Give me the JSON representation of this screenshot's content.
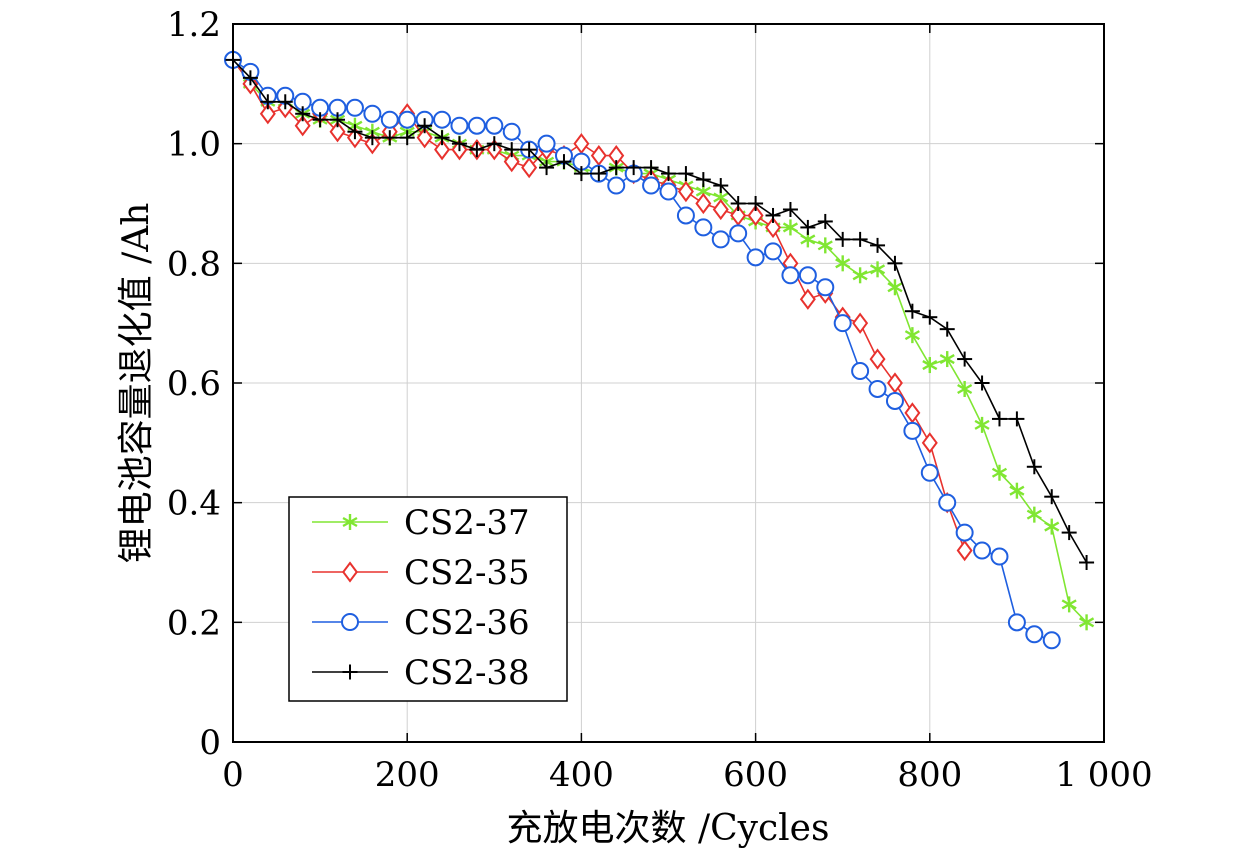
{
  "chart_data": {
    "type": "line",
    "title": "",
    "xlabel": "充放电次数 /Cycles",
    "ylabel": "锂电池容量退化值 /Ah",
    "xlim": [
      0,
      1000
    ],
    "ylim": [
      0,
      1.2
    ],
    "x_ticks": [
      0,
      200,
      400,
      600,
      800,
      1000
    ],
    "x_tick_labels": [
      "0",
      "200",
      "400",
      "600",
      "800",
      "1 000"
    ],
    "y_ticks": [
      0,
      0.2,
      0.4,
      0.6,
      0.8,
      1.0,
      1.2
    ],
    "y_tick_labels": [
      "0",
      "0.2",
      "0.4",
      "0.6",
      "0.8",
      "1.0",
      "1.2"
    ],
    "grid": true,
    "legend_position": "bottom-left",
    "series": [
      {
        "name": "CS2-37",
        "color": "#80e632",
        "marker": "asterisk",
        "x": [
          0,
          20,
          40,
          60,
          80,
          100,
          120,
          140,
          160,
          180,
          200,
          220,
          240,
          260,
          280,
          300,
          320,
          340,
          360,
          380,
          400,
          420,
          440,
          460,
          480,
          500,
          520,
          540,
          560,
          580,
          600,
          620,
          640,
          660,
          680,
          700,
          720,
          740,
          760,
          780,
          800,
          820,
          840,
          860,
          880,
          900,
          920,
          940,
          960,
          980
        ],
        "y": [
          1.14,
          1.1,
          1.07,
          1.07,
          1.05,
          1.04,
          1.04,
          1.03,
          1.02,
          1.01,
          1.02,
          1.02,
          1.01,
          1.0,
          0.99,
          0.99,
          0.98,
          0.98,
          0.97,
          0.97,
          0.96,
          0.95,
          0.96,
          0.95,
          0.95,
          0.94,
          0.93,
          0.92,
          0.91,
          0.88,
          0.87,
          0.86,
          0.86,
          0.84,
          0.83,
          0.8,
          0.78,
          0.79,
          0.76,
          0.68,
          0.63,
          0.64,
          0.59,
          0.53,
          0.45,
          0.42,
          0.38,
          0.36,
          0.23,
          0.2
        ]
      },
      {
        "name": "CS2-35",
        "color": "#e8322e",
        "marker": "diamond",
        "x": [
          0,
          20,
          40,
          60,
          80,
          100,
          120,
          140,
          160,
          180,
          200,
          220,
          240,
          260,
          280,
          300,
          320,
          340,
          360,
          380,
          400,
          420,
          440,
          460,
          480,
          500,
          520,
          540,
          560,
          580,
          600,
          620,
          640,
          660,
          680,
          700,
          720,
          740,
          760,
          780,
          800,
          820,
          840
        ],
        "y": [
          1.14,
          1.1,
          1.05,
          1.06,
          1.03,
          1.05,
          1.02,
          1.01,
          1.0,
          1.02,
          1.05,
          1.01,
          0.99,
          0.99,
          0.99,
          0.99,
          0.97,
          0.96,
          0.99,
          0.98,
          1.0,
          0.98,
          0.98,
          0.95,
          0.94,
          0.93,
          0.92,
          0.9,
          0.89,
          0.88,
          0.88,
          0.86,
          0.8,
          0.74,
          0.75,
          0.71,
          0.7,
          0.64,
          0.6,
          0.55,
          0.5,
          0.4,
          0.32
        ]
      },
      {
        "name": "CS2-36",
        "color": "#1f5fe0",
        "marker": "circle",
        "x": [
          0,
          20,
          40,
          60,
          80,
          100,
          120,
          140,
          160,
          180,
          200,
          220,
          240,
          260,
          280,
          300,
          320,
          340,
          360,
          380,
          400,
          420,
          440,
          460,
          480,
          500,
          520,
          540,
          560,
          580,
          600,
          620,
          640,
          660,
          680,
          700,
          720,
          740,
          760,
          780,
          800,
          820,
          840,
          860,
          880,
          900,
          920,
          940
        ],
        "y": [
          1.14,
          1.12,
          1.08,
          1.08,
          1.07,
          1.06,
          1.06,
          1.06,
          1.05,
          1.04,
          1.04,
          1.04,
          1.04,
          1.03,
          1.03,
          1.03,
          1.02,
          0.99,
          1.0,
          0.98,
          0.97,
          0.95,
          0.93,
          0.95,
          0.93,
          0.92,
          0.88,
          0.86,
          0.84,
          0.85,
          0.81,
          0.82,
          0.78,
          0.78,
          0.76,
          0.7,
          0.62,
          0.59,
          0.57,
          0.52,
          0.45,
          0.4,
          0.35,
          0.32,
          0.31,
          0.2,
          0.18,
          0.17
        ]
      },
      {
        "name": "CS2-38",
        "color": "#000000",
        "marker": "plus",
        "x": [
          0,
          20,
          40,
          60,
          80,
          100,
          120,
          140,
          160,
          180,
          200,
          220,
          240,
          260,
          280,
          300,
          320,
          340,
          360,
          380,
          400,
          420,
          440,
          460,
          480,
          500,
          520,
          540,
          560,
          580,
          600,
          620,
          640,
          660,
          680,
          700,
          720,
          740,
          760,
          780,
          800,
          820,
          840,
          860,
          880,
          900,
          920,
          940,
          960,
          980
        ],
        "y": [
          1.14,
          1.11,
          1.07,
          1.07,
          1.05,
          1.04,
          1.04,
          1.02,
          1.01,
          1.01,
          1.01,
          1.03,
          1.01,
          1.0,
          0.99,
          1.0,
          0.99,
          0.99,
          0.96,
          0.97,
          0.95,
          0.95,
          0.96,
          0.96,
          0.96,
          0.95,
          0.95,
          0.94,
          0.93,
          0.9,
          0.9,
          0.88,
          0.89,
          0.86,
          0.87,
          0.84,
          0.84,
          0.83,
          0.8,
          0.72,
          0.71,
          0.69,
          0.64,
          0.6,
          0.54,
          0.54,
          0.46,
          0.41,
          0.35,
          0.3
        ]
      }
    ]
  }
}
